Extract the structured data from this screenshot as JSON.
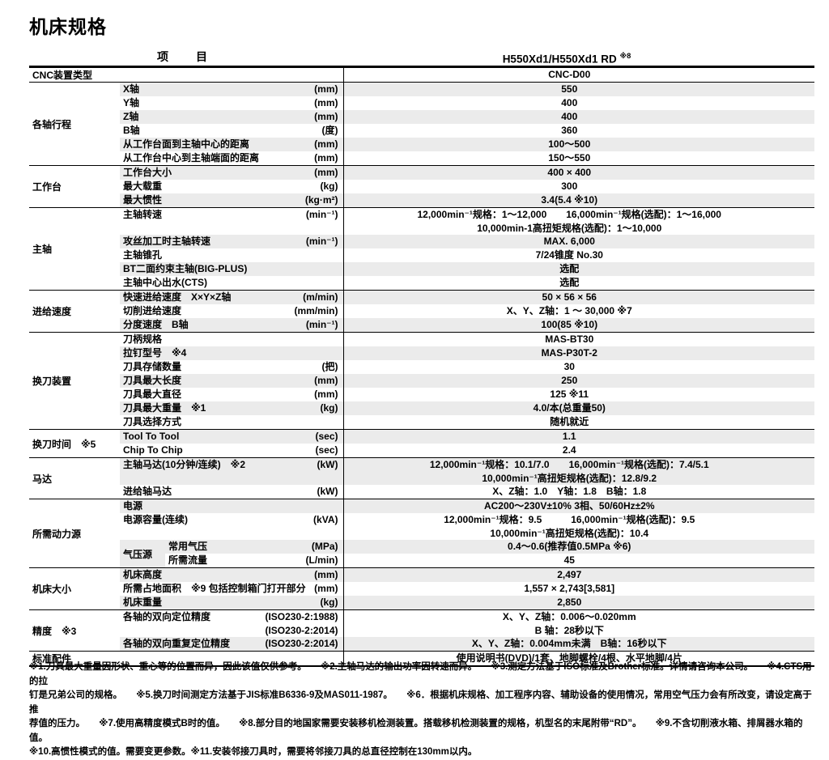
{
  "page_title": "机床规格",
  "table": {
    "header": {
      "item_label": "项　目",
      "model": "H550Xd1/H550Xd1 RD",
      "model_note": "※8"
    },
    "sections": [
      {
        "category": "CNC装置类型",
        "merged": true,
        "items": [
          {
            "value": "CNC-D00"
          }
        ]
      },
      {
        "category": "各轴行程",
        "items": [
          {
            "label": "X轴",
            "unit": "(mm)",
            "value": "550"
          },
          {
            "label": "Y轴",
            "unit": "(mm)",
            "value": "400"
          },
          {
            "label": "Z轴",
            "unit": "(mm)",
            "value": "400"
          },
          {
            "label": "B轴",
            "unit": "(度)",
            "value": "360"
          },
          {
            "label": "从工作台面到主轴中心的距离",
            "unit": "(mm)",
            "value": "100～500"
          },
          {
            "label": "从工作台中心到主轴端面的距离",
            "unit": "(mm)",
            "value": "150～550"
          }
        ]
      },
      {
        "category": "工作台",
        "items": [
          {
            "label": "工作台大小",
            "unit": "(mm)",
            "value": "400 × 400"
          },
          {
            "label": "最大载重",
            "unit": "(kg)",
            "value": "300"
          },
          {
            "label": "最大惯性",
            "unit": "(kg·m²)",
            "value": "3.4(5.4 ※10)"
          }
        ]
      },
      {
        "category": "主轴",
        "items": [
          {
            "label": "主轴转速",
            "unit": "(min⁻¹)",
            "value": [
              "12,000min⁻¹规格：1～12,000　　16,000min⁻¹规格(选配)：1～16,000",
              "10,000min-1高扭矩规格(选配)：1～10,000"
            ]
          },
          {
            "label": "攻丝加工时主轴转速",
            "unit": "(min⁻¹)",
            "value": "MAX. 6,000"
          },
          {
            "label": "主轴锥孔",
            "value": "7/24锥度 No.30"
          },
          {
            "label": "BT二面约束主轴(BIG-PLUS)",
            "value": "选配"
          },
          {
            "label": "主轴中心出水(CTS)",
            "value": "选配"
          }
        ]
      },
      {
        "category": "进给速度",
        "items": [
          {
            "label": "快速进给速度　X×Y×Z轴",
            "unit": "(m/min)",
            "value": "50 × 56 × 56"
          },
          {
            "label": "切削进给速度",
            "unit": "(mm/min)",
            "value": "X、Y、Z轴：1 ～ 30,000 ※7"
          },
          {
            "label": "分度速度　B轴",
            "unit": "(min⁻¹)",
            "value": "100(85 ※10)"
          }
        ]
      },
      {
        "category": "换刀装置",
        "items": [
          {
            "label": "刀柄规格",
            "value": "MAS-BT30"
          },
          {
            "label": "拉钉型号　※4",
            "value": "MAS-P30T-2"
          },
          {
            "label": "刀具存储数量",
            "unit": "(把)",
            "value": "30"
          },
          {
            "label": "刀具最大长度",
            "unit": "(mm)",
            "value": "250"
          },
          {
            "label": "刀具最大直径",
            "unit": "(mm)",
            "value": "125 ※11"
          },
          {
            "label": "刀具最大重量　※1",
            "unit": "(kg)",
            "value": "4.0/本(总重量50)"
          },
          {
            "label": "刀具选择方式",
            "value": "随机就近"
          }
        ]
      },
      {
        "category": "换刀时间　※5",
        "items": [
          {
            "label": "Tool To Tool",
            "unit": "(sec)",
            "value": "1.1"
          },
          {
            "label": "Chip To Chip",
            "unit": "(sec)",
            "value": "2.4"
          }
        ]
      },
      {
        "category": "马达",
        "items": [
          {
            "label": "主轴马达(10分钟/连续)　※2",
            "unit": "(kW)",
            "value": [
              "12,000min⁻¹规格：10.1/7.0　　16,000min⁻¹规格(选配)：7.4/5.1",
              "10,000min⁻¹高扭矩规格(选配)：12.8/9.2"
            ]
          },
          {
            "label": "进给轴马达",
            "unit": "(kW)",
            "value": "X、Z轴：1.0　Y轴：1.8　B轴：1.8"
          }
        ]
      },
      {
        "category": "所需动力源",
        "items": [
          {
            "label": "电源",
            "value": "AC200～230V±10% 3相、50/60Hz±2%"
          },
          {
            "label": "电源容量(连续)",
            "unit": "(kVA)",
            "value": [
              "12,000min⁻¹规格：9.5　　　16,000min⁻¹规格(选配)：9.5",
              "10,000min⁻¹高扭矩规格(选配)：10.4"
            ]
          },
          {
            "label": "常用气压",
            "unit": "(MPa)",
            "value": "0.4～0.6(推荐值0.5MPa ※6)",
            "subgroup": {
              "label": "气压源",
              "span": 2
            }
          },
          {
            "label": "所需流量",
            "unit": "(L/min)",
            "value": "45",
            "subgroup": "member"
          }
        ]
      },
      {
        "category": "机床大小",
        "items": [
          {
            "label": "机床高度",
            "unit": "(mm)",
            "value": "2,497"
          },
          {
            "label": "所需占地面积　※9 包括控制箱门打开部分",
            "unit": "(mm)",
            "value": "1,557 × 2,743[3,581]"
          },
          {
            "label": "机床重量",
            "unit": "(kg)",
            "value": "2,850"
          }
        ]
      },
      {
        "category": "精度　※3",
        "items": [
          {
            "label": "各轴的双向定位精度",
            "unit": [
              "(ISO230-2:1988)",
              "(ISO230-2:2014)"
            ],
            "value": [
              "X、Y、Z轴：0.006～0.020mm",
              "B 轴：28秒以下"
            ]
          },
          {
            "label": "各轴的双向重复定位精度",
            "unit": "(ISO230-2:2014)",
            "value": "X、Y、Z轴：0.004mm未满　B轴：16秒以下"
          }
        ]
      },
      {
        "category": "标准配件",
        "merged": true,
        "items": [
          {
            "value": "使用说明书(DVD)/1套、地脚螺栓/4根、水平地脚/4片"
          }
        ]
      }
    ],
    "footnotes": [
      "※1.刀具最大重量因形状、重心等的位置而异，因此该值仅供参考。　　※2.主轴马达的输出功率因转速而异。　　※3.测定方法基于ISO标准及Brother标准。详情请咨询本公司。　　※4.CTS用的拉",
      "钉是兄弟公司的规格。　　※5.换刀时间测定方法基于JIS标准B6336-9及MAS011-1987。　　※6．根据机床规格、加工程序内容、辅助设备的使用情况，常用空气压力会有所改变，请设定高于推",
      "荐值的压力。　　※7.使用高精度模式B时的值。　　※8.部分目的地国家需要安装移机检测装置。搭载移机检测装置的规格，机型名的末尾附带“RD”。　　※9.不含切削液水箱、排屑器水箱的值。",
      "※10.高惯性模式的值。需要变更参数。※11.安装邻接刀具时，需要将邻接刀具的总直径控制在130mm以内。"
    ]
  }
}
